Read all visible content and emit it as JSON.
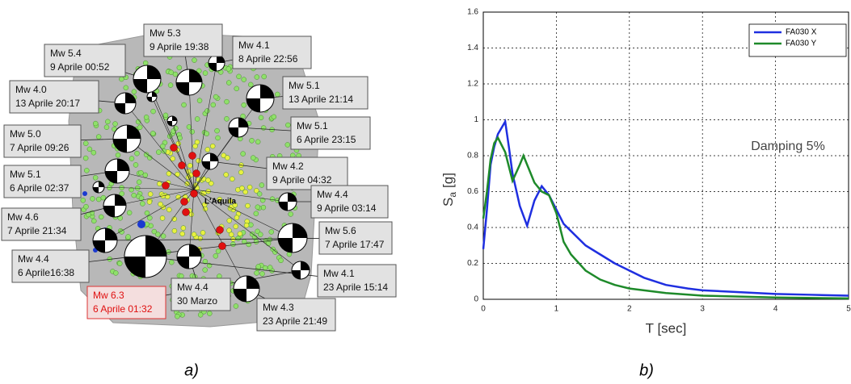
{
  "map": {
    "place": "L'Aquila",
    "events": [
      {
        "mag": "Mw 5.4",
        "date": "9 Aprile 00:52"
      },
      {
        "mag": "Mw 5.3",
        "date": "9 Aprile 19:38"
      },
      {
        "mag": "Mw 4.1",
        "date": "8 Aprile 22:56"
      },
      {
        "mag": "Mw 4.0",
        "date": "13 Aprile 20:17"
      },
      {
        "mag": "Mw 5.1",
        "date": "13 Aprile 21:14"
      },
      {
        "mag": "Mw 5.0",
        "date": "7 Aprile 09:26"
      },
      {
        "mag": "Mw 5.1",
        "date": "6 Aprile 23:15"
      },
      {
        "mag": "Mw 4.2",
        "date": "9 Aprile 04:32"
      },
      {
        "mag": "Mw 5.1",
        "date": "6 Aprile 02:37"
      },
      {
        "mag": "Mw 4.4",
        "date": "9 Aprile 03:14"
      },
      {
        "mag": "Mw 4.6",
        "date": "7 Aprile 21:34"
      },
      {
        "mag": "Mw 5.6",
        "date": "7 Aprile 17:47"
      },
      {
        "mag": "Mw 4.4",
        "date": "6 Aprile16:38"
      },
      {
        "mag": "Mw 4.1",
        "date": "23 Aprile 15:14"
      },
      {
        "mag": "Mw 6.3",
        "date": "6 Aprile 01:32"
      },
      {
        "mag": "Mw 4.4",
        "date": "30 Marzo"
      },
      {
        "mag": "Mw 4.3",
        "date": "23 Aprile 21:49"
      }
    ],
    "caption": "a)"
  },
  "chart_data": {
    "type": "line",
    "caption": "b)",
    "xlabel": "T [sec]",
    "ylabel": "S",
    "ylabel_sub": "a",
    "ylabel_unit": "[g]",
    "annotation": "Damping 5%",
    "xlim": [
      0,
      5
    ],
    "xticks": [
      0,
      1,
      2,
      3,
      4,
      5
    ],
    "ylim": [
      0,
      1.6
    ],
    "yticks": [
      0,
      0.2,
      0.4,
      0.6,
      0.8,
      1,
      1.2,
      1.4,
      1.6
    ],
    "grid": true,
    "legend": "upper right",
    "series": [
      {
        "name": "FA030 X",
        "color": "#1f2fe0",
        "x": [
          0,
          0.05,
          0.1,
          0.15,
          0.2,
          0.3,
          0.35,
          0.4,
          0.5,
          0.6,
          0.7,
          0.8,
          0.9,
          1.0,
          1.1,
          1.2,
          1.4,
          1.6,
          1.8,
          2.0,
          2.2,
          2.5,
          2.8,
          3,
          3.5,
          4,
          4.5,
          5
        ],
        "values": [
          0.28,
          0.5,
          0.75,
          0.85,
          0.92,
          0.99,
          0.85,
          0.7,
          0.52,
          0.41,
          0.55,
          0.63,
          0.58,
          0.5,
          0.42,
          0.38,
          0.3,
          0.25,
          0.2,
          0.16,
          0.12,
          0.08,
          0.06,
          0.05,
          0.04,
          0.03,
          0.025,
          0.02
        ]
      },
      {
        "name": "FA030 Y",
        "color": "#1e8a2a",
        "x": [
          0,
          0.05,
          0.1,
          0.15,
          0.2,
          0.3,
          0.4,
          0.5,
          0.55,
          0.6,
          0.7,
          0.8,
          0.9,
          1.0,
          1.1,
          1.2,
          1.4,
          1.6,
          1.8,
          2,
          2.5,
          3,
          4,
          5
        ],
        "values": [
          0.45,
          0.6,
          0.78,
          0.87,
          0.9,
          0.82,
          0.66,
          0.75,
          0.8,
          0.75,
          0.65,
          0.6,
          0.58,
          0.48,
          0.32,
          0.25,
          0.16,
          0.11,
          0.08,
          0.06,
          0.035,
          0.02,
          0.01,
          0.005
        ]
      }
    ]
  }
}
